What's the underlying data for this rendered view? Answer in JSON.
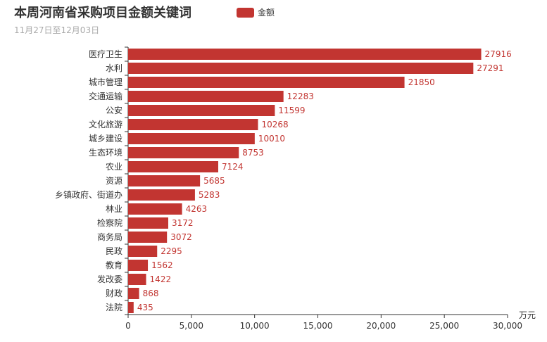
{
  "chart_data": {
    "type": "bar",
    "orientation": "horizontal",
    "title": "本周河南省采购项目金额关键词",
    "subtitle": "11月27日至12月03日",
    "categories": [
      "医疗卫生",
      "水利",
      "城市管理",
      "交通运输",
      "公安",
      "文化旅游",
      "城乡建设",
      "生态环境",
      "农业",
      "资源",
      "乡镇政府、街道办",
      "林业",
      "检察院",
      "商务局",
      "民政",
      "教育",
      "发改委",
      "财政",
      "法院"
    ],
    "series": [
      {
        "name": "金额",
        "values": [
          27916,
          27291,
          21850,
          12283,
          11599,
          10268,
          10010,
          8753,
          7124,
          5685,
          5283,
          4263,
          3172,
          3072,
          2295,
          1562,
          1422,
          868,
          435
        ]
      }
    ],
    "xlabel": "万元",
    "ylabel": "",
    "xlim": [
      0,
      30000
    ],
    "xticks": [
      0,
      5000,
      10000,
      15000,
      20000,
      25000,
      30000
    ],
    "xtick_labels": [
      "0",
      "5,000",
      "10,000",
      "15,000",
      "20,000",
      "25,000",
      "30,000"
    ],
    "bar_color": "#c23531",
    "grid": false,
    "legend_position": "top"
  }
}
